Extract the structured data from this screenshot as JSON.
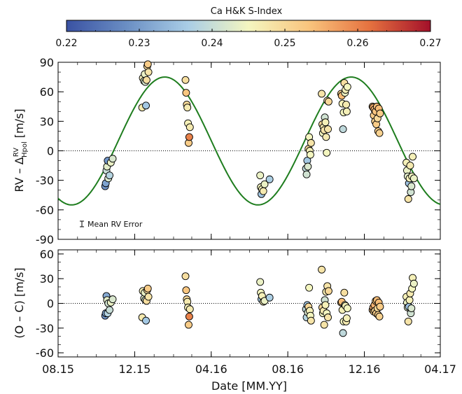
{
  "chart_data": [
    {
      "type": "colorbar",
      "title": "Ca H&K S-Index",
      "range": [
        0.22,
        0.27
      ],
      "ticks": [
        "0.22",
        "0.23",
        "0.24",
        "0.25",
        "0.26",
        "0.27"
      ],
      "colormap": [
        "#3a52a3",
        "#6b8fc4",
        "#a9cde6",
        "#f4f6c0",
        "#f9c47d",
        "#e5713f",
        "#a3102a"
      ]
    },
    {
      "type": "scatter",
      "ylabel": "RV – Δ^RV_Hpol [m/s]",
      "ylim": [
        -90,
        90
      ],
      "yticks": [
        "90",
        "60",
        "30",
        "0",
        "-30",
        "-60",
        "-90"
      ],
      "xlim": [
        "2015-08-01",
        "2017-04-01"
      ],
      "zero_line": true,
      "model_curve": {
        "color": "#1e7d1e",
        "amplitude": 65,
        "offset": 10,
        "period_days": 297,
        "peak_date": "2016-01-18"
      },
      "error_bar_label": "Mean RV Error",
      "points": [
        {
          "x": "2015-10-15",
          "y": -36,
          "s": 0.229
        },
        {
          "x": "2015-10-16",
          "y": -33,
          "s": 0.231
        },
        {
          "x": "2015-10-17",
          "y": -20,
          "s": 0.24
        },
        {
          "x": "2015-10-18",
          "y": -16,
          "s": 0.243
        },
        {
          "x": "2015-10-19",
          "y": -10,
          "s": 0.229
        },
        {
          "x": "2015-10-20",
          "y": -28,
          "s": 0.242
        },
        {
          "x": "2015-10-22",
          "y": -25,
          "s": 0.238
        },
        {
          "x": "2015-10-24",
          "y": -12,
          "s": 0.244
        },
        {
          "x": "2015-10-27",
          "y": -8,
          "s": 0.242
        },
        {
          "x": "2015-12-13",
          "y": 44,
          "s": 0.247
        },
        {
          "x": "2015-12-14",
          "y": 74,
          "s": 0.246
        },
        {
          "x": "2015-12-16",
          "y": 71,
          "s": 0.243
        },
        {
          "x": "2015-12-17",
          "y": 78,
          "s": 0.244
        },
        {
          "x": "2015-12-18",
          "y": 70,
          "s": 0.242
        },
        {
          "x": "2015-12-19",
          "y": 46,
          "s": 0.236
        },
        {
          "x": "2015-12-20",
          "y": 72,
          "s": 0.249
        },
        {
          "x": "2015-12-21",
          "y": 86,
          "s": 0.25
        },
        {
          "x": "2015-12-22",
          "y": 88,
          "s": 0.252
        },
        {
          "x": "2015-12-23",
          "y": 80,
          "s": 0.248
        },
        {
          "x": "2016-02-20",
          "y": 72,
          "s": 0.249
        },
        {
          "x": "2016-02-21",
          "y": 59,
          "s": 0.253
        },
        {
          "x": "2016-02-22",
          "y": 47,
          "s": 0.25
        },
        {
          "x": "2016-02-23",
          "y": 44,
          "s": 0.247
        },
        {
          "x": "2016-02-24",
          "y": 28,
          "s": 0.246
        },
        {
          "x": "2016-02-25",
          "y": 8,
          "s": 0.252
        },
        {
          "x": "2016-02-26",
          "y": 14,
          "s": 0.26
        },
        {
          "x": "2016-02-27",
          "y": 24,
          "s": 0.247
        },
        {
          "x": "2016-06-18",
          "y": -25,
          "s": 0.244
        },
        {
          "x": "2016-06-19",
          "y": -37,
          "s": 0.245
        },
        {
          "x": "2016-06-20",
          "y": -44,
          "s": 0.236
        },
        {
          "x": "2016-06-21",
          "y": -39,
          "s": 0.246
        },
        {
          "x": "2016-06-23",
          "y": -41,
          "s": 0.247
        },
        {
          "x": "2016-06-25",
          "y": -34,
          "s": 0.244
        },
        {
          "x": "2016-07-03",
          "y": -29,
          "s": 0.237
        },
        {
          "x": "2016-08-30",
          "y": -18,
          "s": 0.239
        },
        {
          "x": "2016-08-31",
          "y": -24,
          "s": 0.241
        },
        {
          "x": "2016-09-01",
          "y": -10,
          "s": 0.236
        },
        {
          "x": "2016-09-02",
          "y": -16,
          "s": 0.242
        },
        {
          "x": "2016-09-03",
          "y": 2,
          "s": 0.25
        },
        {
          "x": "2016-09-04",
          "y": 14,
          "s": 0.245
        },
        {
          "x": "2016-09-05",
          "y": 0,
          "s": 0.246
        },
        {
          "x": "2016-09-06",
          "y": -4,
          "s": 0.245
        },
        {
          "x": "2016-09-07",
          "y": 8,
          "s": 0.248
        },
        {
          "x": "2016-09-24",
          "y": 58,
          "s": 0.248
        },
        {
          "x": "2016-09-25",
          "y": 27,
          "s": 0.25
        },
        {
          "x": "2016-09-26",
          "y": 18,
          "s": 0.245
        },
        {
          "x": "2016-09-27",
          "y": 24,
          "s": 0.247
        },
        {
          "x": "2016-09-28",
          "y": 21,
          "s": 0.248
        },
        {
          "x": "2016-09-29",
          "y": 34,
          "s": 0.241
        },
        {
          "x": "2016-09-30",
          "y": 29,
          "s": 0.246
        },
        {
          "x": "2016-10-01",
          "y": 14,
          "s": 0.247
        },
        {
          "x": "2016-10-02",
          "y": -2,
          "s": 0.245
        },
        {
          "x": "2016-10-03",
          "y": 51,
          "s": 0.248
        },
        {
          "x": "2016-10-04",
          "y": 22,
          "s": 0.248
        },
        {
          "x": "2016-10-05",
          "y": 50,
          "s": 0.25
        },
        {
          "x": "2016-10-25",
          "y": 58,
          "s": 0.251
        },
        {
          "x": "2016-10-26",
          "y": 56,
          "s": 0.254
        },
        {
          "x": "2016-10-27",
          "y": 48,
          "s": 0.246
        },
        {
          "x": "2016-10-28",
          "y": 22,
          "s": 0.239
        },
        {
          "x": "2016-10-29",
          "y": 39,
          "s": 0.245
        },
        {
          "x": "2016-10-30",
          "y": 69,
          "s": 0.249
        },
        {
          "x": "2016-10-31",
          "y": 59,
          "s": 0.244
        },
        {
          "x": "2016-11-01",
          "y": 62,
          "s": 0.246
        },
        {
          "x": "2016-11-02",
          "y": 47,
          "s": 0.247
        },
        {
          "x": "2016-11-03",
          "y": 40,
          "s": 0.246
        },
        {
          "x": "2016-11-04",
          "y": 65,
          "s": 0.245
        },
        {
          "x": "2016-12-14",
          "y": 45,
          "s": 0.253
        },
        {
          "x": "2016-12-15",
          "y": 44,
          "s": 0.256
        },
        {
          "x": "2016-12-16",
          "y": 36,
          "s": 0.252
        },
        {
          "x": "2016-12-17",
          "y": 42,
          "s": 0.255
        },
        {
          "x": "2016-12-18",
          "y": 30,
          "s": 0.251
        },
        {
          "x": "2016-12-19",
          "y": 40,
          "s": 0.253
        },
        {
          "x": "2016-12-20",
          "y": 27,
          "s": 0.252
        },
        {
          "x": "2016-12-21",
          "y": 45,
          "s": 0.254
        },
        {
          "x": "2016-12-22",
          "y": 33,
          "s": 0.25
        },
        {
          "x": "2016-12-23",
          "y": 20,
          "s": 0.252
        },
        {
          "x": "2016-12-24",
          "y": 43,
          "s": 0.254
        },
        {
          "x": "2016-12-25",
          "y": 18,
          "s": 0.251
        },
        {
          "x": "2016-12-26",
          "y": 38,
          "s": 0.252
        },
        {
          "x": "2017-02-06",
          "y": -12,
          "s": 0.246
        },
        {
          "x": "2017-02-07",
          "y": -20,
          "s": 0.244
        },
        {
          "x": "2017-02-08",
          "y": -26,
          "s": 0.243
        },
        {
          "x": "2017-02-09",
          "y": -49,
          "s": 0.248
        },
        {
          "x": "2017-02-10",
          "y": -33,
          "s": 0.235
        },
        {
          "x": "2017-02-11",
          "y": -28,
          "s": 0.246
        },
        {
          "x": "2017-02-12",
          "y": -15,
          "s": 0.247
        },
        {
          "x": "2017-02-13",
          "y": -42,
          "s": 0.241
        },
        {
          "x": "2017-02-14",
          "y": -36,
          "s": 0.242
        },
        {
          "x": "2017-02-15",
          "y": -26,
          "s": 0.245
        },
        {
          "x": "2017-02-16",
          "y": -6,
          "s": 0.246
        },
        {
          "x": "2017-02-18",
          "y": -28,
          "s": 0.244
        }
      ]
    },
    {
      "type": "scatter",
      "ylabel": "(O – C) [m/s]",
      "ylim": [
        -65,
        65
      ],
      "yticks": [
        "60",
        "30",
        "0",
        "-30",
        "-60"
      ],
      "xlim": [
        "2015-08-01",
        "2017-04-01"
      ],
      "xlabel": "Date [MM.YY]",
      "xticks": [
        {
          "x": "2015-08-01",
          "label": "08.15"
        },
        {
          "x": "2015-12-01",
          "label": "12.15"
        },
        {
          "x": "2016-04-01",
          "label": "04.16"
        },
        {
          "x": "2016-08-01",
          "label": "08.16"
        },
        {
          "x": "2016-12-01",
          "label": "12.16"
        },
        {
          "x": "2017-04-01",
          "label": "04.17"
        }
      ],
      "zero_line": true,
      "points": [
        {
          "x": "2015-10-15",
          "y": -15,
          "s": 0.229
        },
        {
          "x": "2015-10-16",
          "y": -12,
          "s": 0.231
        },
        {
          "x": "2015-10-17",
          "y": 9,
          "s": 0.232
        },
        {
          "x": "2015-10-18",
          "y": 4,
          "s": 0.243
        },
        {
          "x": "2015-10-19",
          "y": -12,
          "s": 0.238
        },
        {
          "x": "2015-10-20",
          "y": 0,
          "s": 0.241
        },
        {
          "x": "2015-10-22",
          "y": -8,
          "s": 0.24
        },
        {
          "x": "2015-10-24",
          "y": 1,
          "s": 0.244
        },
        {
          "x": "2015-10-27",
          "y": 5,
          "s": 0.242
        },
        {
          "x": "2015-12-13",
          "y": -17,
          "s": 0.247
        },
        {
          "x": "2015-12-14",
          "y": 15,
          "s": 0.246
        },
        {
          "x": "2015-12-16",
          "y": 6,
          "s": 0.243
        },
        {
          "x": "2015-12-17",
          "y": 13,
          "s": 0.244
        },
        {
          "x": "2015-12-18",
          "y": 4,
          "s": 0.242
        },
        {
          "x": "2015-12-19",
          "y": -21,
          "s": 0.236
        },
        {
          "x": "2015-12-20",
          "y": 3,
          "s": 0.249
        },
        {
          "x": "2015-12-21",
          "y": 16,
          "s": 0.25
        },
        {
          "x": "2015-12-22",
          "y": 18,
          "s": 0.252
        },
        {
          "x": "2015-12-23",
          "y": 8,
          "s": 0.248
        },
        {
          "x": "2016-02-20",
          "y": 33,
          "s": 0.249
        },
        {
          "x": "2016-02-21",
          "y": 16,
          "s": 0.253
        },
        {
          "x": "2016-02-22",
          "y": 5,
          "s": 0.25
        },
        {
          "x": "2016-02-23",
          "y": 2,
          "s": 0.247
        },
        {
          "x": "2016-02-24",
          "y": -5,
          "s": 0.246
        },
        {
          "x": "2016-02-25",
          "y": -26,
          "s": 0.252
        },
        {
          "x": "2016-02-26",
          "y": -16,
          "s": 0.26
        },
        {
          "x": "2016-02-27",
          "y": -7,
          "s": 0.247
        },
        {
          "x": "2016-06-18",
          "y": 26,
          "s": 0.244
        },
        {
          "x": "2016-06-19",
          "y": 13,
          "s": 0.245
        },
        {
          "x": "2016-06-20",
          "y": 5,
          "s": 0.236
        },
        {
          "x": "2016-06-21",
          "y": 9,
          "s": 0.246
        },
        {
          "x": "2016-06-23",
          "y": 2,
          "s": 0.247
        },
        {
          "x": "2016-06-25",
          "y": 3,
          "s": 0.244
        },
        {
          "x": "2016-07-03",
          "y": 7,
          "s": 0.237
        },
        {
          "x": "2016-08-30",
          "y": -7,
          "s": 0.239
        },
        {
          "x": "2016-08-31",
          "y": -17,
          "s": 0.238
        },
        {
          "x": "2016-09-01",
          "y": -2,
          "s": 0.236
        },
        {
          "x": "2016-09-02",
          "y": -11,
          "s": 0.242
        },
        {
          "x": "2016-09-03",
          "y": -4,
          "s": 0.25
        },
        {
          "x": "2016-09-04",
          "y": 19,
          "s": 0.245
        },
        {
          "x": "2016-09-05",
          "y": -9,
          "s": 0.246
        },
        {
          "x": "2016-09-06",
          "y": -15,
          "s": 0.245
        },
        {
          "x": "2016-09-07",
          "y": -21,
          "s": 0.248
        },
        {
          "x": "2016-09-24",
          "y": 41,
          "s": 0.248
        },
        {
          "x": "2016-09-25",
          "y": -5,
          "s": 0.25
        },
        {
          "x": "2016-09-26",
          "y": -12,
          "s": 0.245
        },
        {
          "x": "2016-09-27",
          "y": -9,
          "s": 0.247
        },
        {
          "x": "2016-09-28",
          "y": -26,
          "s": 0.248
        },
        {
          "x": "2016-09-29",
          "y": 4,
          "s": 0.241
        },
        {
          "x": "2016-09-30",
          "y": -2,
          "s": 0.246
        },
        {
          "x": "2016-10-01",
          "y": 14,
          "s": 0.247
        },
        {
          "x": "2016-10-02",
          "y": -12,
          "s": 0.245
        },
        {
          "x": "2016-10-03",
          "y": 21,
          "s": 0.248
        },
        {
          "x": "2016-10-04",
          "y": -17,
          "s": 0.248
        },
        {
          "x": "2016-10-05",
          "y": 15,
          "s": 0.25
        },
        {
          "x": "2016-10-25",
          "y": 1,
          "s": 0.251
        },
        {
          "x": "2016-10-26",
          "y": 2,
          "s": 0.254
        },
        {
          "x": "2016-10-27",
          "y": -8,
          "s": 0.246
        },
        {
          "x": "2016-10-28",
          "y": -36,
          "s": 0.239
        },
        {
          "x": "2016-10-29",
          "y": -22,
          "s": 0.245
        },
        {
          "x": "2016-10-30",
          "y": 13,
          "s": 0.249
        },
        {
          "x": "2016-10-31",
          "y": -2,
          "s": 0.244
        },
        {
          "x": "2016-11-01",
          "y": -3,
          "s": 0.246
        },
        {
          "x": "2016-11-02",
          "y": -22,
          "s": 0.247
        },
        {
          "x": "2016-11-03",
          "y": -18,
          "s": 0.246
        },
        {
          "x": "2016-11-04",
          "y": -6,
          "s": 0.245
        },
        {
          "x": "2016-12-14",
          "y": -8,
          "s": 0.253
        },
        {
          "x": "2016-12-15",
          "y": -5,
          "s": 0.256
        },
        {
          "x": "2016-12-16",
          "y": -10,
          "s": 0.252
        },
        {
          "x": "2016-12-17",
          "y": -2,
          "s": 0.255
        },
        {
          "x": "2016-12-18",
          "y": -9,
          "s": 0.251
        },
        {
          "x": "2016-12-19",
          "y": 3,
          "s": 0.253
        },
        {
          "x": "2016-12-20",
          "y": -12,
          "s": 0.252
        },
        {
          "x": "2016-12-21",
          "y": 4,
          "s": 0.254
        },
        {
          "x": "2016-12-22",
          "y": -6,
          "s": 0.25
        },
        {
          "x": "2016-12-23",
          "y": -14,
          "s": 0.252
        },
        {
          "x": "2016-12-24",
          "y": 1,
          "s": 0.254
        },
        {
          "x": "2016-12-25",
          "y": -16,
          "s": 0.251
        },
        {
          "x": "2016-12-26",
          "y": -4,
          "s": 0.252
        },
        {
          "x": "2017-02-06",
          "y": 8,
          "s": 0.246
        },
        {
          "x": "2017-02-07",
          "y": 1,
          "s": 0.244
        },
        {
          "x": "2017-02-08",
          "y": -5,
          "s": 0.243
        },
        {
          "x": "2017-02-09",
          "y": -22,
          "s": 0.248
        },
        {
          "x": "2017-02-10",
          "y": -4,
          "s": 0.235
        },
        {
          "x": "2017-02-11",
          "y": 4,
          "s": 0.246
        },
        {
          "x": "2017-02-12",
          "y": 12,
          "s": 0.247
        },
        {
          "x": "2017-02-13",
          "y": -12,
          "s": 0.241
        },
        {
          "x": "2017-02-14",
          "y": -6,
          "s": 0.242
        },
        {
          "x": "2017-02-15",
          "y": 18,
          "s": 0.245
        },
        {
          "x": "2017-02-16",
          "y": 31,
          "s": 0.246
        },
        {
          "x": "2017-02-18",
          "y": 24,
          "s": 0.244
        }
      ]
    }
  ]
}
